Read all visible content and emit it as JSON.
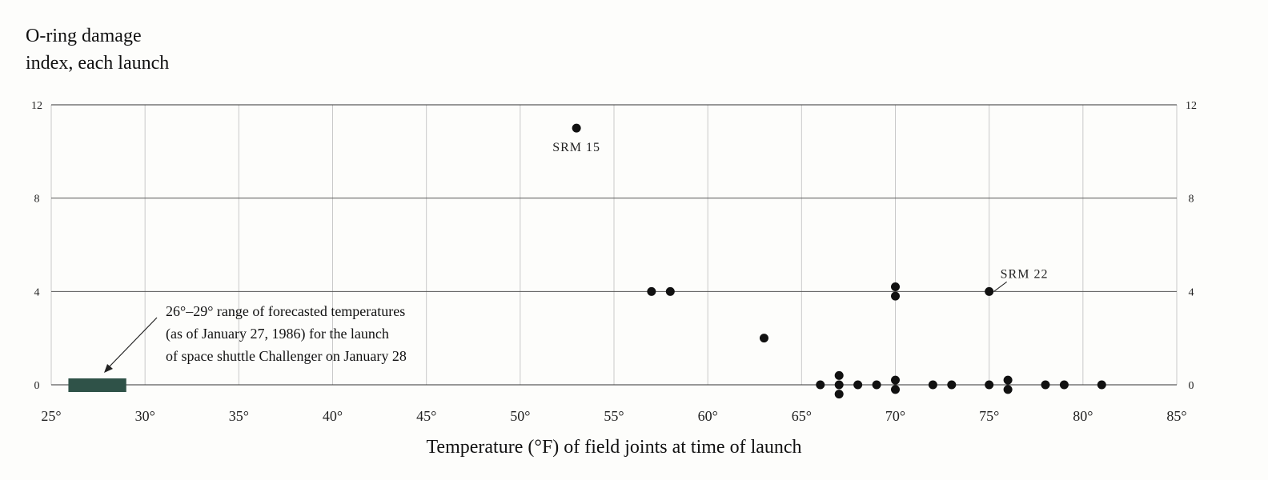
{
  "chart_data": {
    "type": "scatter",
    "ylabel_lines": [
      "O-ring damage",
      "index, each launch"
    ],
    "xlabel": "Temperature (°F) of field joints at time of launch",
    "xlim": [
      25,
      85
    ],
    "ylim": [
      0,
      12
    ],
    "x_ticks": [
      25,
      30,
      35,
      40,
      45,
      50,
      55,
      60,
      65,
      70,
      75,
      80,
      85
    ],
    "x_tick_labels": [
      "25°",
      "30°",
      "35°",
      "40°",
      "45°",
      "50°",
      "55°",
      "60°",
      "65°",
      "70°",
      "75°",
      "80°",
      "85°"
    ],
    "y_ticks": [
      0,
      4,
      8,
      12
    ],
    "y_tick_labels": [
      "0",
      "4",
      "8",
      "12"
    ],
    "grid": true,
    "points": [
      {
        "x": 53,
        "y": 11
      },
      {
        "x": 57,
        "y": 4
      },
      {
        "x": 58,
        "y": 4
      },
      {
        "x": 63,
        "y": 2
      },
      {
        "x": 70,
        "y": 4.2
      },
      {
        "x": 70,
        "y": 3.8
      },
      {
        "x": 75,
        "y": 4
      },
      {
        "x": 66,
        "y": 0
      },
      {
        "x": 67,
        "y": 0.4
      },
      {
        "x": 67,
        "y": 0
      },
      {
        "x": 67,
        "y": -0.4
      },
      {
        "x": 68,
        "y": 0
      },
      {
        "x": 69,
        "y": 0
      },
      {
        "x": 70,
        "y": 0.2
      },
      {
        "x": 70,
        "y": -0.2
      },
      {
        "x": 72,
        "y": 0
      },
      {
        "x": 73,
        "y": 0
      },
      {
        "x": 75,
        "y": 0
      },
      {
        "x": 76,
        "y": 0.2
      },
      {
        "x": 76,
        "y": -0.2
      },
      {
        "x": 78,
        "y": 0
      },
      {
        "x": 79,
        "y": 0
      },
      {
        "x": 81,
        "y": 0
      }
    ],
    "point_labels": [
      {
        "text": "SRM 15",
        "x": 53,
        "y": 11
      },
      {
        "text": "SRM 22",
        "x": 75,
        "y": 4
      }
    ],
    "forecast_range": {
      "x_start": 26,
      "x_end": 29,
      "color": "#2f5248",
      "note_lines": [
        "26°–29° range of forecasted temperatures",
        "(as of January 27, 1986) for the launch",
        "of space shuttle Challenger on January 28"
      ]
    },
    "colors": {
      "point": "#111111",
      "grid": "#c9c9c9",
      "axis": "#333333"
    }
  }
}
